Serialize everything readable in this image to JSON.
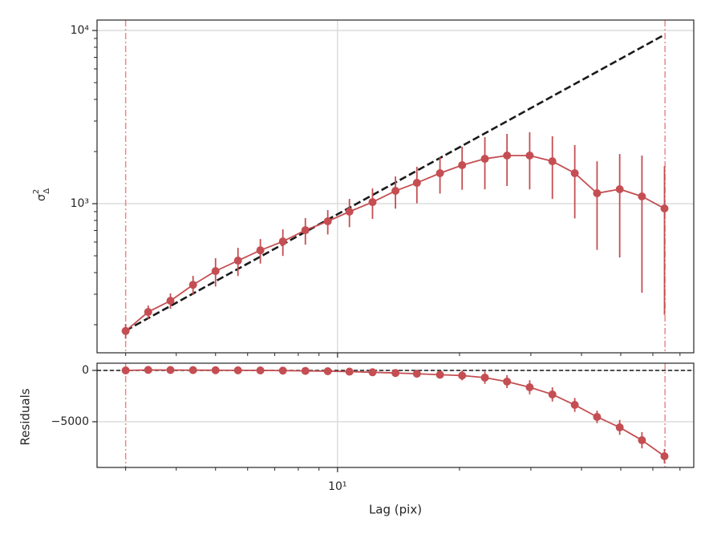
{
  "chart_data": [
    {
      "type": "errorbar-line",
      "xlog": true,
      "ylog": true,
      "grid": true,
      "ylabel": {
        "base": "σ",
        "sup": "2",
        "sub": "Δ"
      },
      "xlim": [
        2.55,
        75.7
      ],
      "ylim": [
        137.7,
        11490
      ],
      "xticks": [
        {
          "value": 10,
          "label": "10¹"
        }
      ],
      "xminorticks": [
        3,
        4,
        5,
        6,
        7,
        8,
        9,
        20,
        30,
        40,
        50,
        60,
        70
      ],
      "yticks": [
        {
          "value": 1000,
          "label": "10³"
        },
        {
          "value": 10000,
          "label": "10⁴"
        }
      ],
      "yminorticks": [
        200,
        300,
        400,
        500,
        600,
        700,
        800,
        900,
        2000,
        3000,
        4000,
        5000,
        6000,
        7000,
        8000,
        9000
      ],
      "vlines": [
        3,
        64.3
      ],
      "vline_color": "#e8898c",
      "series": [
        {
          "color": "#c44e52",
          "x": [
            3,
            3.41,
            3.87,
            4.4,
            5.0,
            5.68,
            6.45,
            7.33,
            8.33,
            9.46,
            10.7,
            12.2,
            13.9,
            15.7,
            17.9,
            20.3,
            23.1,
            26.2,
            29.8,
            33.9,
            38.5,
            43.7,
            49.7,
            56.4,
            64.1
          ],
          "values": [
            184,
            237,
            275,
            340,
            408,
            469,
            538,
            605,
            703,
            791,
            899,
            1021,
            1186,
            1319,
            1500,
            1668,
            1816,
            1896,
            1896,
            1757,
            1500,
            1149,
            1212,
            1101,
            938
          ],
          "errors": [
            18,
            21,
            28,
            43,
            76,
            87,
            87,
            106,
            123,
            127,
            167,
            204,
            250,
            314,
            357,
            465,
            606,
            632,
            687,
            692,
            678,
            608,
            723,
            795,
            710
          ]
        }
      ],
      "model": {
        "color": "#1a1a1a",
        "x": [
          3,
          64.3
        ],
        "values": [
          185,
          9490
        ]
      }
    },
    {
      "type": "errorbar-line",
      "xlog": true,
      "ylog": false,
      "grid": true,
      "ylabel": "Residuals",
      "xlabel": "Lag (pix)",
      "xlim": [
        2.55,
        75.7
      ],
      "ylim": [
        -9453,
        703
      ],
      "xticks": [
        {
          "value": 10,
          "label": "10¹"
        }
      ],
      "xminorticks": [
        3,
        4,
        5,
        6,
        7,
        8,
        9,
        20,
        30,
        40,
        50,
        60,
        70
      ],
      "yticks": [
        {
          "value": -5000,
          "label": "−5000"
        },
        0
      ],
      "vlines": [
        3,
        64.3
      ],
      "vline_color": "#e8898c",
      "hline": 0,
      "series": [
        {
          "color": "#c44e52",
          "x": [
            3,
            3.41,
            3.87,
            4.4,
            5.0,
            5.68,
            6.45,
            7.33,
            8.33,
            9.46,
            10.7,
            12.2,
            13.9,
            15.7,
            17.9,
            20.3,
            23.1,
            26.2,
            29.8,
            33.9,
            38.5,
            43.7,
            49.7,
            56.4,
            64.1
          ],
          "values": [
            0,
            50,
            40,
            30,
            20,
            10,
            0,
            -20,
            -50,
            -80,
            -120,
            -180,
            -250,
            -320,
            -420,
            -500,
            -700,
            -1090,
            -1640,
            -2340,
            -3360,
            -4530,
            -5550,
            -6800,
            -8360
          ],
          "errors": [
            18,
            21,
            28,
            43,
            76,
            87,
            87,
            106,
            123,
            127,
            167,
            204,
            250,
            314,
            357,
            465,
            606,
            632,
            687,
            692,
            678,
            608,
            723,
            795,
            710
          ]
        }
      ]
    }
  ]
}
